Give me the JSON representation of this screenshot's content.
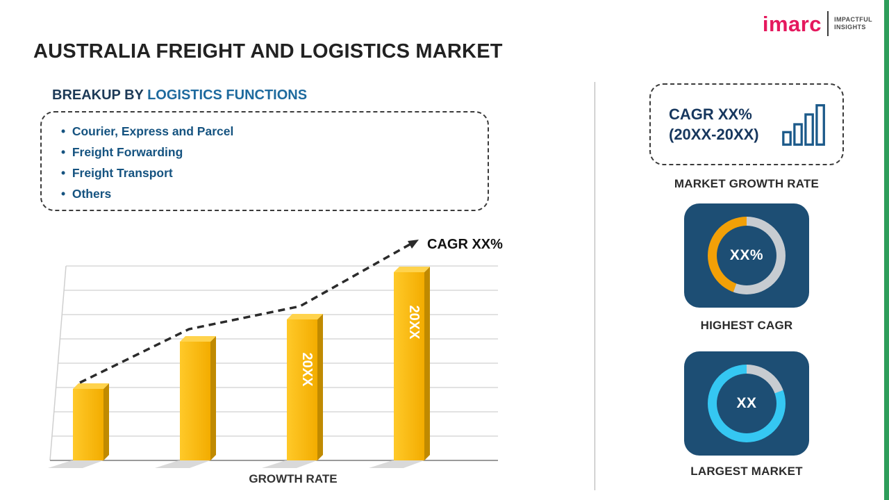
{
  "colors": {
    "brand_pink": "#e5195e",
    "dark_navy": "#17375e",
    "list_blue": "#155380",
    "gold": "#fdb913",
    "gold_dark": "#c08a00",
    "gold_light": "#ffd34d",
    "shadow_gray": "#d9d9d9",
    "ring_gray": "#c7ccd1",
    "card_blue": "#1d4e74",
    "cyan": "#35c7f2",
    "ring_yellow": "#f2a007",
    "edge_green": "#2e9e5b"
  },
  "header": {
    "title": "AUSTRALIA FREIGHT AND LOGISTICS MARKET",
    "logo": {
      "brand": "imarc",
      "tagline1": "IMPACTFUL",
      "tagline2": "INSIGHTS"
    }
  },
  "breakup": {
    "heading_prefix": "BREAKUP BY",
    "heading_highlight": "LOGISTICS FUNCTIONS",
    "items": [
      "Courier, Express and Parcel",
      "Freight Forwarding",
      "Freight Transport",
      "Others"
    ]
  },
  "chart_data": {
    "type": "bar",
    "title": "",
    "xlabel": "GROWTH RATE",
    "ylabel": "",
    "categories": [
      "",
      "",
      "20XX",
      "20XX"
    ],
    "values": [
      38,
      63,
      75,
      100
    ],
    "ylim": [
      0,
      100
    ],
    "grid": true,
    "bar_color": "#fdb913",
    "trend": {
      "label": "CAGR XX%",
      "style": "dashed-arrow"
    }
  },
  "sidebar": {
    "growth_box": {
      "line1": "CAGR XX%",
      "line2": "(20XX-20XX)"
    },
    "market_growth_rate_label": "MARKET GROWTH RATE",
    "highest_cagr": {
      "value": "XX%",
      "label": "HIGHEST CAGR",
      "ring": {
        "color": "#f2a007",
        "accent_from_deg": 200
      }
    },
    "largest_market": {
      "value": "XX",
      "label": "LARGEST MARKET",
      "ring": {
        "color": "#35c7f2",
        "accent_from_deg": 70
      }
    }
  }
}
